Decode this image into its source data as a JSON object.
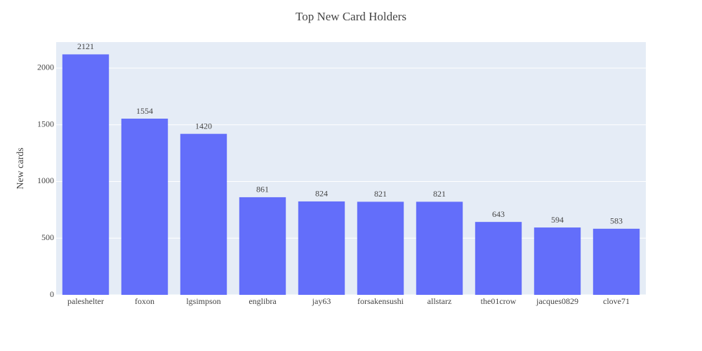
{
  "chart_data": {
    "type": "bar",
    "title": "Top New Card Holders",
    "y_label": "New cards",
    "categories": [
      "paleshelter",
      "foxon",
      "lgsimpson",
      "englibra",
      "jay63",
      "forsakensushi",
      "allstarz",
      "the01crow",
      "jacques0829",
      "clove71"
    ],
    "values": [
      2121,
      1554,
      1420,
      861,
      824,
      821,
      821,
      643,
      594,
      583
    ],
    "color": "#636efa",
    "ylim": [
      0,
      2229
    ],
    "yticks": [
      0,
      500,
      1000,
      1500,
      2000
    ],
    "grid": true
  }
}
